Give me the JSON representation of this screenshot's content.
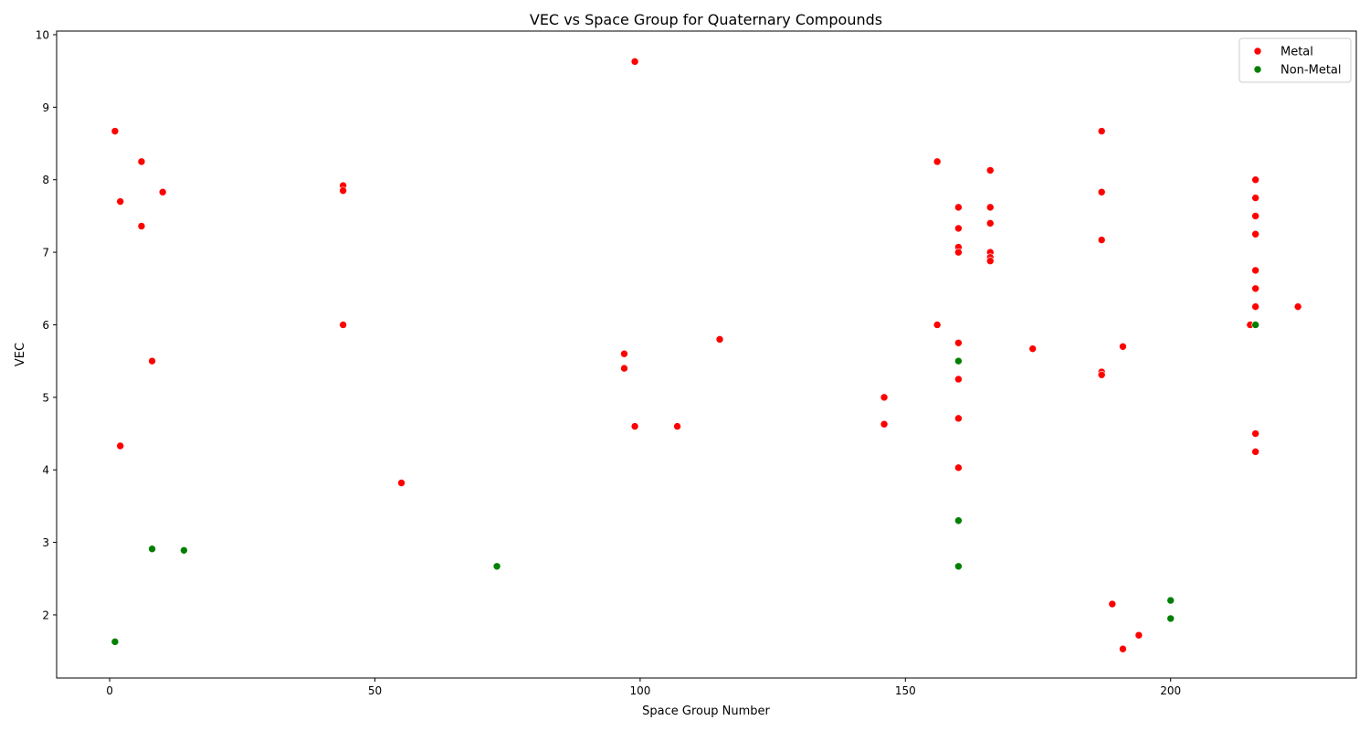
{
  "chart_data": {
    "type": "scatter",
    "title": "VEC vs Space Group for Quaternary Compounds",
    "xlabel": "Space Group Number",
    "ylabel": "VEC",
    "xlim": [
      -10,
      235
    ],
    "ylim": [
      1.13,
      10.05
    ],
    "x_ticks": [
      0,
      50,
      100,
      150,
      200
    ],
    "y_ticks": [
      2,
      3,
      4,
      5,
      6,
      7,
      8,
      9,
      10
    ],
    "grid": false,
    "legend_position": "top-right",
    "series": [
      {
        "name": "Metal",
        "color": "#ff0000",
        "points": [
          {
            "x": 1,
            "y": 8.67
          },
          {
            "x": 2,
            "y": 7.7
          },
          {
            "x": 2,
            "y": 4.33
          },
          {
            "x": 6,
            "y": 8.25
          },
          {
            "x": 6,
            "y": 7.36
          },
          {
            "x": 8,
            "y": 5.5
          },
          {
            "x": 10,
            "y": 7.83
          },
          {
            "x": 44,
            "y": 7.92
          },
          {
            "x": 44,
            "y": 7.85
          },
          {
            "x": 44,
            "y": 6.0
          },
          {
            "x": 55,
            "y": 3.82
          },
          {
            "x": 97,
            "y": 5.6
          },
          {
            "x": 97,
            "y": 5.4
          },
          {
            "x": 99,
            "y": 9.63
          },
          {
            "x": 99,
            "y": 4.6
          },
          {
            "x": 107,
            "y": 4.6
          },
          {
            "x": 115,
            "y": 5.8
          },
          {
            "x": 146,
            "y": 5.0
          },
          {
            "x": 146,
            "y": 4.63
          },
          {
            "x": 156,
            "y": 8.25
          },
          {
            "x": 156,
            "y": 6.0
          },
          {
            "x": 160,
            "y": 7.62
          },
          {
            "x": 160,
            "y": 7.33
          },
          {
            "x": 160,
            "y": 7.07
          },
          {
            "x": 160,
            "y": 7.0
          },
          {
            "x": 160,
            "y": 5.75
          },
          {
            "x": 160,
            "y": 5.25
          },
          {
            "x": 160,
            "y": 4.71
          },
          {
            "x": 160,
            "y": 4.03
          },
          {
            "x": 166,
            "y": 8.13
          },
          {
            "x": 166,
            "y": 7.62
          },
          {
            "x": 166,
            "y": 7.4
          },
          {
            "x": 166,
            "y": 7.0
          },
          {
            "x": 166,
            "y": 6.93
          },
          {
            "x": 166,
            "y": 6.88
          },
          {
            "x": 174,
            "y": 5.67
          },
          {
            "x": 187,
            "y": 8.67
          },
          {
            "x": 187,
            "y": 7.83
          },
          {
            "x": 187,
            "y": 7.17
          },
          {
            "x": 187,
            "y": 5.35
          },
          {
            "x": 187,
            "y": 5.31
          },
          {
            "x": 189,
            "y": 2.15
          },
          {
            "x": 191,
            "y": 5.7
          },
          {
            "x": 191,
            "y": 1.53
          },
          {
            "x": 194,
            "y": 1.72
          },
          {
            "x": 215,
            "y": 6.0
          },
          {
            "x": 216,
            "y": 8.0
          },
          {
            "x": 216,
            "y": 7.75
          },
          {
            "x": 216,
            "y": 7.5
          },
          {
            "x": 216,
            "y": 7.25
          },
          {
            "x": 216,
            "y": 6.75
          },
          {
            "x": 216,
            "y": 6.5
          },
          {
            "x": 216,
            "y": 6.25
          },
          {
            "x": 216,
            "y": 4.5
          },
          {
            "x": 216,
            "y": 4.25
          },
          {
            "x": 224,
            "y": 6.25
          }
        ]
      },
      {
        "name": "Non-Metal",
        "color": "#008000",
        "points": [
          {
            "x": 1,
            "y": 1.63
          },
          {
            "x": 8,
            "y": 2.91
          },
          {
            "x": 14,
            "y": 2.89
          },
          {
            "x": 73,
            "y": 2.67
          },
          {
            "x": 160,
            "y": 5.5
          },
          {
            "x": 160,
            "y": 3.3
          },
          {
            "x": 160,
            "y": 2.67
          },
          {
            "x": 200,
            "y": 2.2
          },
          {
            "x": 200,
            "y": 1.95
          },
          {
            "x": 216,
            "y": 6.0
          }
        ]
      }
    ]
  }
}
